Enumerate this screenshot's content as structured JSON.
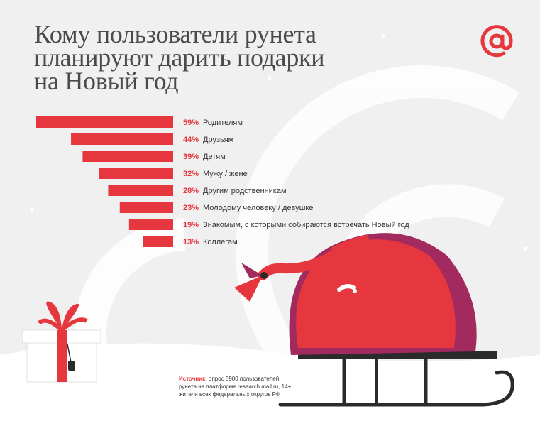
{
  "title_lines": [
    "Кому пользователи рунета",
    "планируют дарить подарки",
    "на Новый год"
  ],
  "source": {
    "label": "Источник:",
    "text": " опрос 5900 пользователей",
    "line2": "рунета на платформе research.mail.ru, 14+,",
    "line3": "жители всех федеральных округов РФ"
  },
  "colors": {
    "accent": "#e5373d",
    "magenta": "#a32a5e",
    "background": "#f0f0f0"
  },
  "icons": [
    "at-sign-logo-icon",
    "gift-box-icon",
    "sleigh-icon",
    "santa-sack-icon"
  ],
  "chart_data": {
    "type": "bar",
    "orientation": "horizontal",
    "categories": [
      "Родителям",
      "Друзьям",
      "Детям",
      "Мужу / жене",
      "Другим родственникам",
      "Молодому человеку / девушке",
      "Знакомым, с которыми собираются встречать Новый год",
      "Коллегам"
    ],
    "values": [
      59,
      44,
      39,
      32,
      28,
      23,
      19,
      13
    ],
    "value_labels": [
      "59%",
      "44%",
      "39%",
      "32%",
      "28%",
      "23%",
      "19%",
      "13%"
    ],
    "unit": "%",
    "xlim": [
      0,
      59
    ],
    "grid": false,
    "title": "Кому пользователи рунета планируют дарить подарки на Новый год"
  }
}
